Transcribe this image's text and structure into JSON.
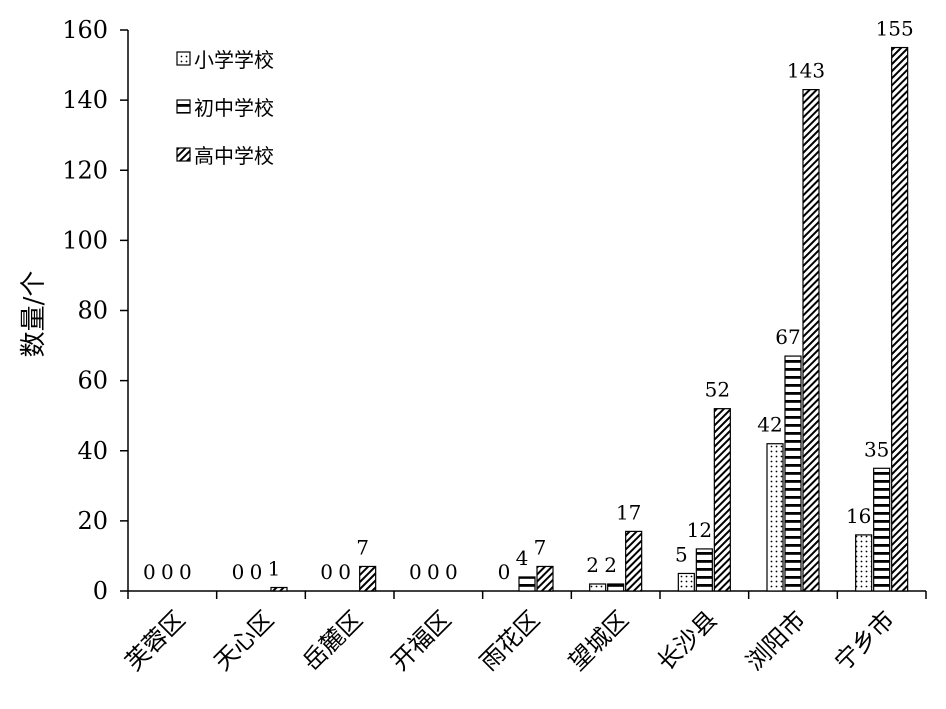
{
  "chart_data": {
    "type": "bar",
    "title": "",
    "xlabel": "",
    "ylabel": "数量/个",
    "ylim": [
      0,
      160
    ],
    "yticks": [
      0,
      20,
      40,
      60,
      80,
      100,
      120,
      140,
      160
    ],
    "grid": false,
    "legend_position": "top-left",
    "categories": [
      "芙蓉区",
      "天心区",
      "岳麓区",
      "开福区",
      "雨花区",
      "望城区",
      "长沙县",
      "浏阳市",
      "宁乡市"
    ],
    "series": [
      {
        "name": "小学学校",
        "pattern": "dots",
        "values": [
          0,
          0,
          0,
          0,
          0,
          2,
          5,
          42,
          16
        ]
      },
      {
        "name": "初中学校",
        "pattern": "horizontal-stripes",
        "values": [
          0,
          0,
          0,
          0,
          4,
          2,
          12,
          67,
          35
        ]
      },
      {
        "name": "高中学校",
        "pattern": "diagonal-stripes",
        "values": [
          0,
          1,
          7,
          0,
          7,
          17,
          52,
          143,
          155
        ]
      }
    ]
  }
}
